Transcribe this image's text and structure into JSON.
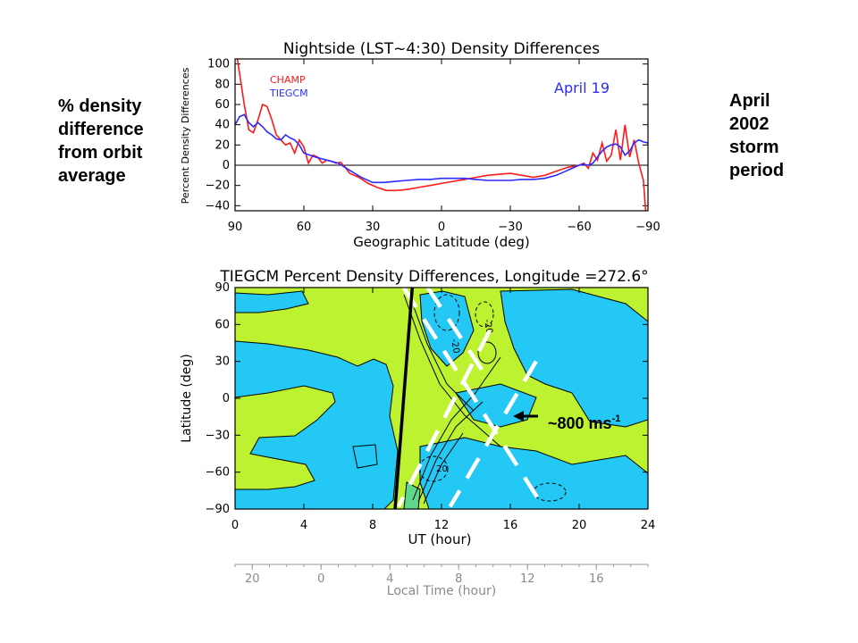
{
  "annotations": {
    "left_note": [
      "% density",
      "difference",
      "from orbit",
      "average"
    ],
    "right_note": [
      "April",
      "2002",
      "storm",
      "period"
    ],
    "speed_label": "~800 ms",
    "speed_superscript": "-1"
  },
  "chart_data": [
    {
      "type": "line",
      "title": "Nightside (LST~4:30) Density Differences",
      "xlabel": "Geographic Latitude (deg)",
      "ylabel": "Percent Density Differences",
      "xlim": [
        90,
        -90
      ],
      "ylim": [
        -45,
        105
      ],
      "xticks": [
        90,
        60,
        30,
        0,
        -30,
        -60,
        -90
      ],
      "xtick_labels": [
        "90",
        "60",
        "30",
        "0",
        "−30",
        "−60",
        "−90"
      ],
      "yticks": [
        -40,
        -20,
        0,
        20,
        40,
        60,
        80,
        100
      ],
      "ytick_labels": [
        "−40",
        "−20",
        "0",
        "20",
        "40",
        "60",
        "80",
        "100"
      ],
      "annotation": "April 19",
      "zero_line": true,
      "series": [
        {
          "name": "CHAMP",
          "color": "#ff1a1a",
          "x": [
            89,
            86,
            84,
            82,
            80,
            78,
            76,
            74,
            72,
            70,
            68,
            66,
            64,
            62,
            60,
            58,
            56,
            54,
            52,
            50,
            48,
            46,
            44,
            42,
            40,
            36,
            32,
            28,
            24,
            20,
            15,
            10,
            5,
            0,
            -5,
            -10,
            -15,
            -20,
            -25,
            -30,
            -35,
            -40,
            -45,
            -50,
            -55,
            -58,
            -60,
            -62,
            -64,
            -66,
            -68,
            -70,
            -72,
            -74,
            -76,
            -78,
            -80,
            -82,
            -84,
            -86,
            -88,
            -89
          ],
          "y": [
            105,
            60,
            35,
            32,
            45,
            60,
            58,
            45,
            30,
            25,
            20,
            22,
            12,
            25,
            18,
            2,
            10,
            8,
            2,
            5,
            4,
            2,
            3,
            -2,
            -8,
            -12,
            -18,
            -22,
            -25,
            -25,
            -24,
            -22,
            -20,
            -18,
            -16,
            -14,
            -12,
            -10,
            -9,
            -8,
            -10,
            -12,
            -10,
            -6,
            -2,
            -1,
            0,
            2,
            -3,
            12,
            5,
            22,
            4,
            10,
            35,
            5,
            40,
            8,
            25,
            2,
            -15,
            -45
          ]
        },
        {
          "name": "TIEGCM",
          "color": "#2b2bff",
          "x": [
            90,
            88,
            86,
            84,
            82,
            80,
            78,
            76,
            74,
            72,
            70,
            68,
            66,
            64,
            62,
            60,
            55,
            50,
            45,
            40,
            35,
            30,
            25,
            20,
            15,
            10,
            5,
            0,
            -5,
            -10,
            -15,
            -20,
            -25,
            -30,
            -35,
            -40,
            -45,
            -50,
            -55,
            -60,
            -62,
            -64,
            -66,
            -68,
            -70,
            -72,
            -74,
            -76,
            -78,
            -80,
            -82,
            -84,
            -86,
            -88,
            -90
          ],
          "y": [
            40,
            48,
            50,
            42,
            38,
            42,
            38,
            33,
            30,
            26,
            25,
            30,
            27,
            25,
            20,
            12,
            8,
            5,
            2,
            -5,
            -12,
            -17,
            -17,
            -16,
            -15,
            -14,
            -14,
            -13,
            -13,
            -13,
            -14,
            -15,
            -15,
            -15,
            -14,
            -14,
            -13,
            -10,
            -5,
            0,
            1,
            0,
            2,
            8,
            14,
            18,
            20,
            21,
            18,
            10,
            14,
            22,
            25,
            23,
            22
          ]
        }
      ]
    },
    {
      "type": "heatmap",
      "title": "TIEGCM Percent Density Differences, Longitude =272.6°",
      "xlabel": "UT (hour)",
      "ylabel": "Latitude (deg)",
      "xlim": [
        0,
        24
      ],
      "ylim": [
        -90,
        90
      ],
      "xticks": [
        0,
        4,
        8,
        12,
        16,
        20,
        24
      ],
      "yticks": [
        90,
        60,
        30,
        0,
        -30,
        -60,
        -90
      ],
      "ytick_labels": [
        "90",
        "60",
        "30",
        "0",
        "−30",
        "−60",
        "−90"
      ],
      "contour_labels": [
        "-20",
        "-20",
        "20"
      ],
      "colors": {
        "positive": "#bdf230",
        "negative": "#23c8f4",
        "storm": "#5fd88a"
      },
      "secondary_axis": {
        "label": "Local Time (hour)",
        "tick_labels": [
          "20",
          "0",
          "4",
          "8",
          "12",
          "16"
        ],
        "ut_positions": [
          1,
          5,
          9,
          13,
          17,
          21
        ]
      },
      "orbit_track": {
        "ut_at_south": 9.3,
        "ut_at_north": 10.3
      },
      "propagation_fronts": [
        {
          "ut_start": 9.8,
          "lat_start": 90,
          "ut_end": 18,
          "lat_end": -90
        },
        {
          "ut_start": 11.2,
          "lat_start": 90,
          "ut_end": 14.5,
          "lat_end": 20
        },
        {
          "ut_start": 14.8,
          "lat_start": 55,
          "ut_end": 9.5,
          "lat_end": -88
        },
        {
          "ut_start": 17.5,
          "lat_start": 30,
          "ut_end": 12.5,
          "lat_end": -88
        }
      ]
    }
  ]
}
